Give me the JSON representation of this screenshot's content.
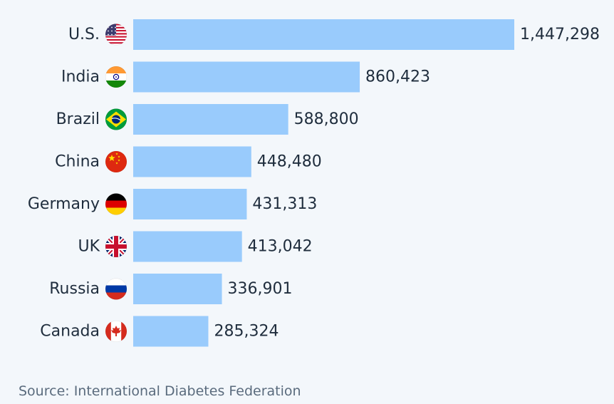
{
  "chart_data": {
    "type": "bar",
    "orientation": "horizontal",
    "categories": [
      "U.S.",
      "India",
      "Brazil",
      "China",
      "Germany",
      "UK",
      "Russia",
      "Canada"
    ],
    "values": [
      1447298,
      860423,
      588800,
      448480,
      431313,
      413042,
      336901,
      285324
    ],
    "value_labels": [
      "1,447,298",
      "860,423",
      "588,800",
      "448,480",
      "431,313",
      "413,042",
      "336,901",
      "285,324"
    ],
    "flag_icons": [
      "us-flag-icon",
      "india-flag-icon",
      "brazil-flag-icon",
      "china-flag-icon",
      "germany-flag-icon",
      "uk-flag-icon",
      "russia-flag-icon",
      "canada-flag-icon"
    ],
    "bar_color": "#99cbfc",
    "xlim": [
      0,
      1447298
    ],
    "grid": false,
    "legend": "none"
  },
  "source": "Source: International Diabetes Federation"
}
